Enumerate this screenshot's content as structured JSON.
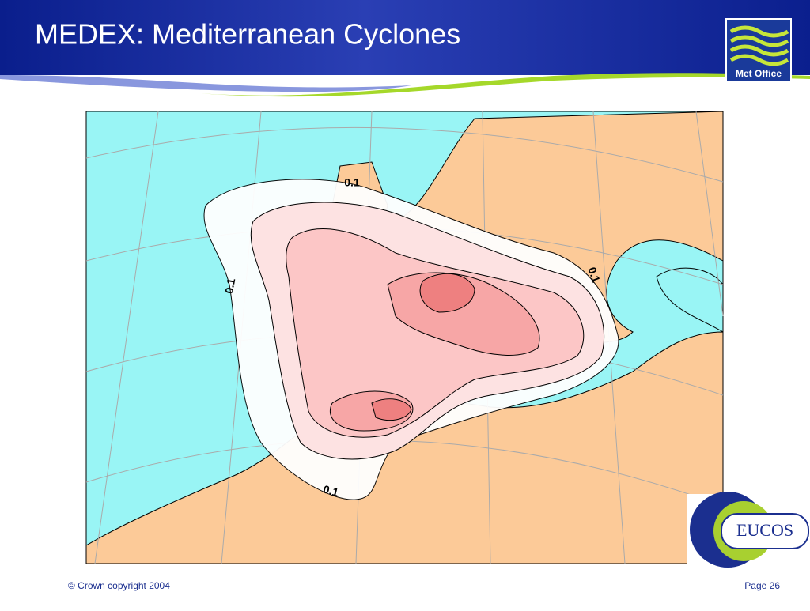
{
  "header": {
    "title": "MEDEX: Mediterranean Cyclones",
    "logo": "Met Office"
  },
  "map": {
    "contour_labels": [
      "0.1",
      "0.1",
      "0.1",
      "0.1"
    ]
  },
  "badge": "EUCOS",
  "footer": {
    "copyright": "© Crown copyright 2004",
    "page": "Page 26"
  }
}
